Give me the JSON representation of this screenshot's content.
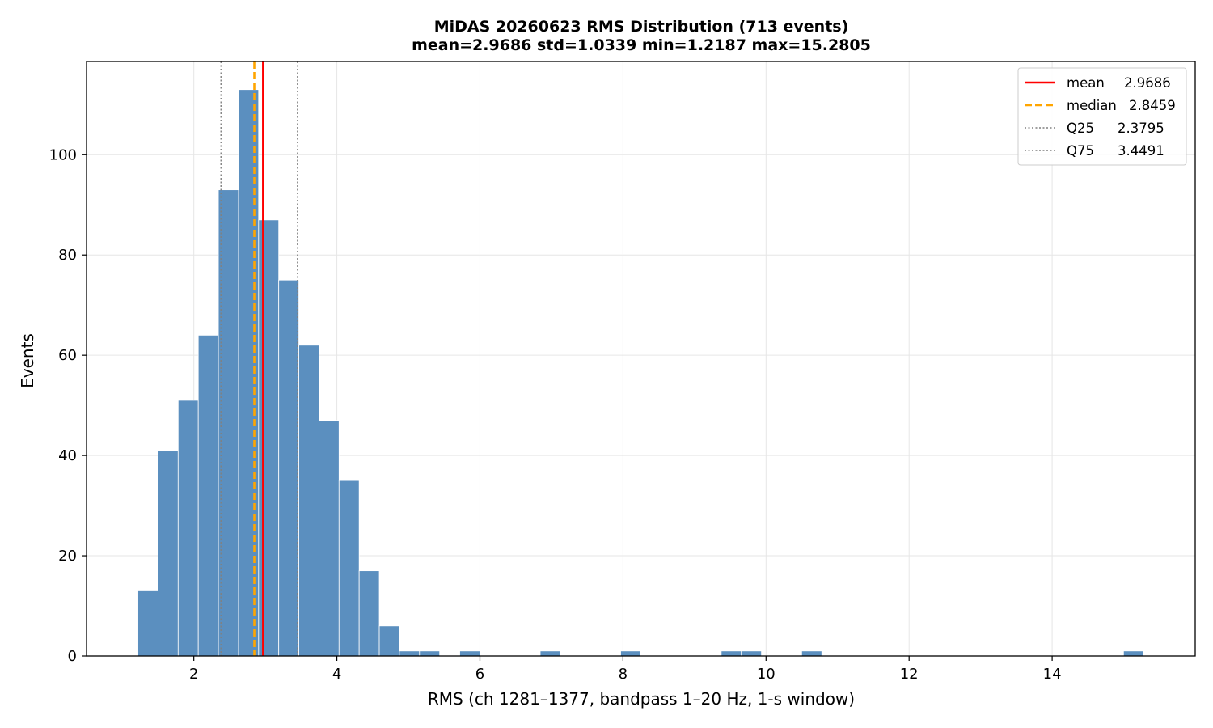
{
  "chart_data": {
    "type": "bar",
    "title": "MiDAS 20260623  RMS Distribution  (713 events)",
    "subtitle": "mean=2.9686  std=1.0339  min=1.2187  max=15.2805",
    "xlabel": "RMS  (ch 1281–1377, bandpass 1–20 Hz, 1-s window)",
    "ylabel": "Events",
    "xlim": [
      0.5,
      16.0
    ],
    "ylim": [
      0,
      118.6
    ],
    "xticks": [
      2,
      4,
      6,
      8,
      10,
      12,
      14
    ],
    "yticks": [
      0,
      20,
      40,
      60,
      80,
      100
    ],
    "grid": true,
    "legend_position": "top-right",
    "bin_start": 1.2187,
    "bin_width": 0.2812,
    "counts": [
      13,
      41,
      51,
      64,
      93,
      113,
      87,
      75,
      62,
      47,
      35,
      17,
      6,
      1,
      1,
      0,
      1,
      0,
      0,
      0,
      1,
      0,
      0,
      0,
      1,
      0,
      0,
      0,
      0,
      1,
      1,
      0,
      0,
      1,
      0,
      0,
      0,
      0,
      0,
      0,
      0,
      0,
      0,
      0,
      0,
      0,
      0,
      0,
      0,
      1
    ],
    "bar_color": "#5b8fbf",
    "lines": [
      {
        "name": "mean",
        "value_label": "2.9686",
        "x": 2.9686,
        "color": "#ff0000",
        "style": "solid"
      },
      {
        "name": "median",
        "value_label": "2.8459",
        "x": 2.8459,
        "color": "#ffa500",
        "style": "dashed"
      },
      {
        "name": "Q25",
        "value_label": "2.3795",
        "x": 2.3795,
        "color": "#808080",
        "style": "dotted"
      },
      {
        "name": "Q75",
        "value_label": "3.4491",
        "x": 3.4491,
        "color": "#808080",
        "style": "dotted"
      }
    ]
  }
}
